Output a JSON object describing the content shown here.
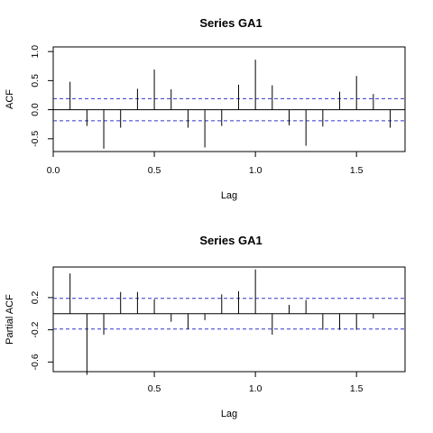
{
  "chart_data": [
    {
      "type": "bar",
      "title": "Series  GA1",
      "xlabel": "Lag",
      "ylabel": "ACF",
      "xlim": [
        0,
        1.74
      ],
      "ylim": [
        -0.72,
        1.08
      ],
      "xticks": [
        0.0,
        0.5,
        1.0,
        1.5
      ],
      "xtick_labels": [
        "0.0",
        "0.5",
        "1.0",
        "1.5"
      ],
      "yticks": [
        -0.5,
        0.0,
        0.5,
        1.0
      ],
      "ytick_labels": [
        "-0.5",
        "0.0",
        "0.5",
        "1.0"
      ],
      "ci": 0.19,
      "ci_color": "#3333cc",
      "x": [
        0.0,
        0.0833,
        0.1667,
        0.25,
        0.3333,
        0.4167,
        0.5,
        0.5833,
        0.6667,
        0.75,
        0.8333,
        0.9167,
        1.0,
        1.0833,
        1.1667,
        1.25,
        1.3333,
        1.4167,
        1.5,
        1.5833,
        1.6667
      ],
      "values": [
        1.0,
        0.48,
        -0.28,
        -0.67,
        -0.31,
        0.36,
        0.69,
        0.35,
        -0.31,
        -0.65,
        -0.28,
        0.43,
        0.86,
        0.42,
        -0.27,
        -0.62,
        -0.29,
        0.31,
        0.58,
        0.27,
        -0.31
      ]
    },
    {
      "type": "bar",
      "title": "Series  GA1",
      "xlabel": "Lag",
      "ylabel": "Partial ACF",
      "xlim": [
        0.0,
        1.74
      ],
      "ylim": [
        -0.72,
        0.58
      ],
      "xticks": [
        0.5,
        1.0,
        1.5
      ],
      "xtick_labels": [
        "0.5",
        "1.0",
        "1.5"
      ],
      "yticks": [
        -0.6,
        -0.2,
        0.2
      ],
      "ytick_labels": [
        "-0.6",
        "-0.2",
        "0.2"
      ],
      "ci": 0.19,
      "ci_color": "#3333cc",
      "x": [
        0.0833,
        0.1667,
        0.25,
        0.3333,
        0.4167,
        0.5,
        0.5833,
        0.6667,
        0.75,
        0.8333,
        0.9167,
        1.0,
        1.0833,
        1.1667,
        1.25,
        1.3333,
        1.4167,
        1.5,
        1.5833
      ],
      "values": [
        0.5,
        -0.76,
        -0.26,
        0.27,
        0.27,
        0.18,
        -0.1,
        -0.19,
        -0.08,
        0.24,
        0.28,
        0.55,
        -0.26,
        0.11,
        0.17,
        -0.2,
        -0.2,
        -0.2,
        -0.06
      ]
    }
  ]
}
